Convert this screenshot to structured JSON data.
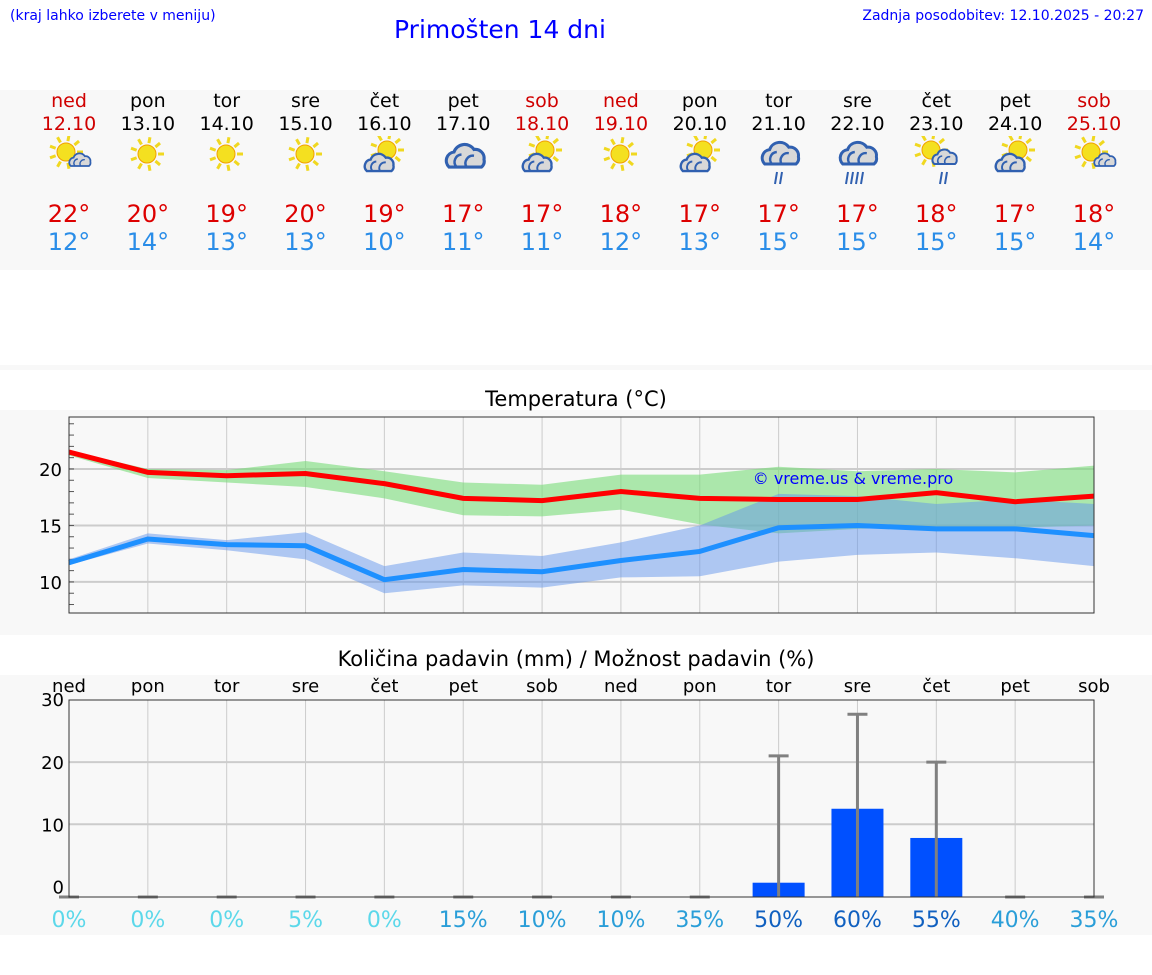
{
  "header": {
    "hint": "(kraj lahko izberete v meniju)",
    "title": "Primošten 14 dni",
    "updated": "Zadnja posodobitev: 12.10.2025 - 20:27"
  },
  "colors": {
    "weekend": "#d00000",
    "weekday": "#000000",
    "max": "#ff0000",
    "min": "#1e90ff",
    "bar": "#0050ff"
  },
  "days": [
    {
      "name": "ned",
      "date": "12.10",
      "weekend": true,
      "icon": "sun-small-cloud",
      "max": "22°",
      "min": "12°"
    },
    {
      "name": "pon",
      "date": "13.10",
      "weekend": false,
      "icon": "sun",
      "max": "20°",
      "min": "14°"
    },
    {
      "name": "tor",
      "date": "14.10",
      "weekend": false,
      "icon": "sun",
      "max": "19°",
      "min": "13°"
    },
    {
      "name": "sre",
      "date": "15.10",
      "weekend": false,
      "icon": "sun",
      "max": "20°",
      "min": "13°"
    },
    {
      "name": "čet",
      "date": "16.10",
      "weekend": false,
      "icon": "sun-cloud",
      "max": "19°",
      "min": "10°"
    },
    {
      "name": "pet",
      "date": "17.10",
      "weekend": false,
      "icon": "cloudy",
      "max": "17°",
      "min": "11°"
    },
    {
      "name": "sob",
      "date": "18.10",
      "weekend": true,
      "icon": "sun-cloud",
      "max": "17°",
      "min": "11°"
    },
    {
      "name": "ned",
      "date": "19.10",
      "weekend": true,
      "icon": "sun",
      "max": "18°",
      "min": "12°"
    },
    {
      "name": "pon",
      "date": "20.10",
      "weekend": false,
      "icon": "sun-cloud",
      "max": "17°",
      "min": "13°"
    },
    {
      "name": "tor",
      "date": "21.10",
      "weekend": false,
      "icon": "cloud-rain",
      "max": "17°",
      "min": "15°"
    },
    {
      "name": "sre",
      "date": "22.10",
      "weekend": false,
      "icon": "cloud-heavy-rain",
      "max": "17°",
      "min": "15°"
    },
    {
      "name": "čet",
      "date": "23.10",
      "weekend": false,
      "icon": "sun-cloud-rain",
      "max": "18°",
      "min": "15°"
    },
    {
      "name": "pet",
      "date": "24.10",
      "weekend": false,
      "icon": "sun-cloud",
      "max": "17°",
      "min": "15°"
    },
    {
      "name": "sob",
      "date": "25.10",
      "weekend": true,
      "icon": "sun-small-cloud",
      "max": "18°",
      "min": "14°"
    }
  ],
  "chart_data": [
    {
      "type": "line",
      "title": "Temperatura (°C)",
      "watermark": "© vreme.us & vreme.pro",
      "ylim": [
        7.25,
        24.6
      ],
      "yticks": [
        "10",
        "15",
        "20"
      ],
      "ytick_values": [
        10,
        15,
        20
      ],
      "series": [
        {
          "name": "max",
          "values": [
            21.5,
            19.7,
            19.4,
            19.6,
            18.7,
            17.4,
            17.2,
            18.0,
            17.4,
            17.3,
            17.3,
            17.9,
            17.1,
            17.6
          ],
          "band_low": [
            21.2,
            19.2,
            18.8,
            18.4,
            17.4,
            15.9,
            15.8,
            16.4,
            15.1,
            14.3,
            14.7,
            14.9,
            14.8,
            15.0
          ],
          "band_high": [
            21.6,
            20.0,
            19.9,
            20.7,
            19.8,
            18.8,
            18.6,
            19.5,
            19.5,
            20.2,
            19.8,
            20.0,
            19.7,
            20.3
          ]
        },
        {
          "name": "min",
          "values": [
            11.7,
            13.8,
            13.3,
            13.2,
            10.2,
            11.1,
            10.9,
            11.9,
            12.7,
            14.8,
            15.0,
            14.7,
            14.7,
            14.1
          ],
          "band_low": [
            11.5,
            13.4,
            12.8,
            12.0,
            9.0,
            9.7,
            9.5,
            10.4,
            10.5,
            11.8,
            12.4,
            12.6,
            12.1,
            11.4
          ],
          "band_high": [
            12.0,
            14.3,
            13.7,
            14.4,
            11.4,
            12.6,
            12.3,
            13.5,
            15.0,
            17.8,
            17.6,
            16.9,
            17.3,
            16.9
          ]
        }
      ]
    },
    {
      "type": "bar",
      "title": "Količina padavin (mm) / Možnost padavin (%)",
      "ylim": [
        -1.7,
        30
      ],
      "yticks": [
        "0",
        "10",
        "20",
        "30"
      ],
      "ytick_values": [
        0,
        10,
        20,
        30
      ],
      "categories": [
        "ned",
        "pon",
        "tor",
        "sre",
        "čet",
        "pet",
        "sob",
        "ned",
        "pon",
        "tor",
        "sre",
        "čet",
        "pet",
        "sob"
      ],
      "values": [
        0,
        0,
        0,
        0,
        0,
        0,
        0,
        0,
        0,
        0.6,
        12.5,
        7.8,
        0,
        0
      ],
      "error_high": [
        0,
        0,
        0,
        0,
        0,
        0,
        0,
        0,
        0,
        21,
        27.7,
        20,
        0,
        0
      ],
      "probability": [
        "0%",
        "0%",
        "0%",
        "5%",
        "0%",
        "15%",
        "10%",
        "10%",
        "35%",
        "50%",
        "60%",
        "55%",
        "40%",
        "35%"
      ],
      "probability_colors": [
        "#5cd8ea",
        "#5cd8ea",
        "#5cd8ea",
        "#5cd8ea",
        "#5cd8ea",
        "#2a9ed8",
        "#2a9ed8",
        "#2a9ed8",
        "#2a9ed8",
        "#1060c0",
        "#1060c0",
        "#1060c0",
        "#2a9ed8",
        "#2a9ed8"
      ]
    }
  ]
}
